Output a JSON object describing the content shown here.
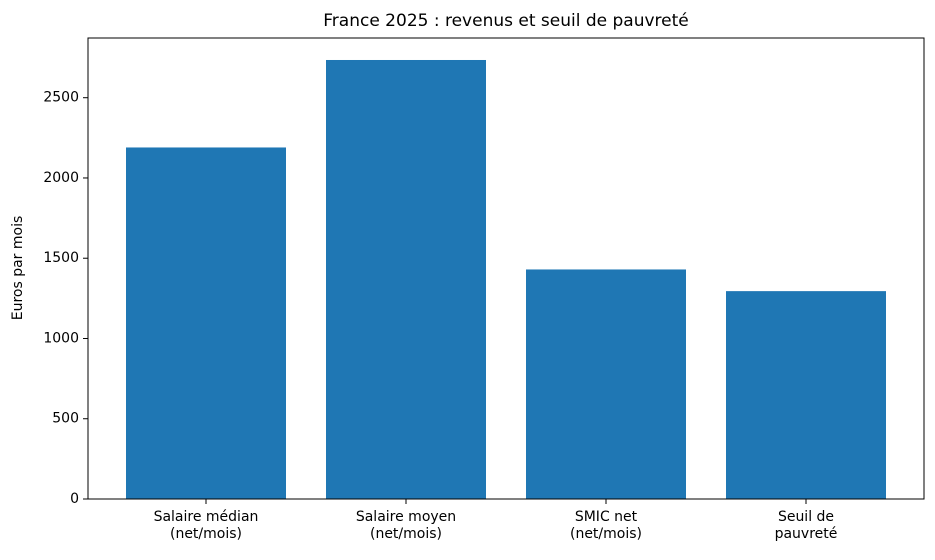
{
  "chart_data": {
    "type": "bar",
    "title": "France 2025 : revenus et seuil de pauvreté",
    "y_label": "Euros par mois",
    "categories": [
      "Salaire médian\n(net/mois)",
      "Salaire moyen\n(net/mois)",
      "SMIC net\n(net/mois)",
      "Seuil de\npauvreté"
    ],
    "values": [
      2190,
      2735,
      1430,
      1295
    ],
    "color": "#1f77b4",
    "ylim": [
      0,
      2872
    ],
    "yticks": [
      0,
      500,
      1000,
      1500,
      2000,
      2500
    ],
    "grid": false
  }
}
